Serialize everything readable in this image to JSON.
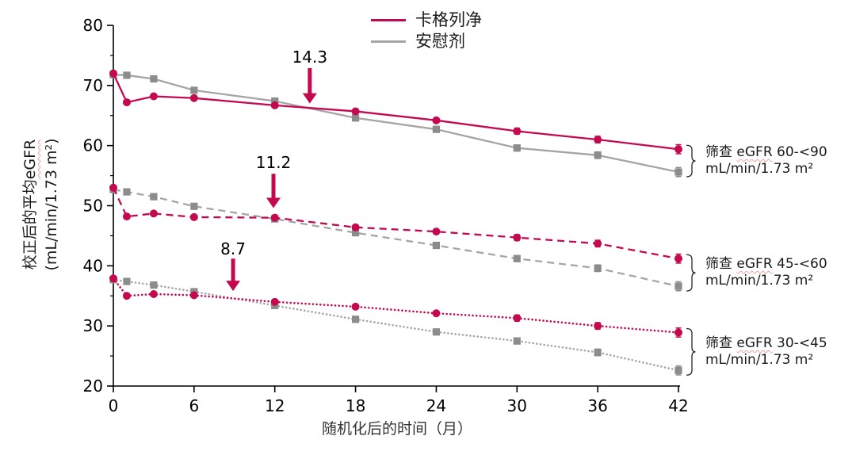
{
  "colors": {
    "canagliflozin": "#C4094E",
    "placebo_line": "#A5A5A5",
    "placebo_marker": "#8C8C8C",
    "axis": "#000000",
    "annotation_arrow": "#C4094E",
    "brace": "#262626"
  },
  "chart_data": {
    "type": "line",
    "x_label": "随机化后的时间（月）",
    "y_label_prefix": "校正后的平均",
    "y_label_egfr": "eGFR",
    "y_label_units": "(mL/min/1.73 m²)",
    "xlim": [
      0,
      42
    ],
    "ylim": [
      20,
      80
    ],
    "x_ticks": [
      0,
      6,
      12,
      18,
      24,
      30,
      36,
      42
    ],
    "y_ticks": [
      20,
      30,
      40,
      50,
      60,
      70,
      80
    ],
    "y_minor_ticks": [
      25,
      35,
      45,
      55,
      65,
      75
    ],
    "grid": false,
    "legend_position": "top-center",
    "legend": [
      {
        "name": "canagliflozin",
        "label": "卡格列净"
      },
      {
        "name": "placebo",
        "label": "安慰剂"
      }
    ],
    "months": [
      0,
      1,
      3,
      6,
      12,
      18,
      24,
      30,
      36,
      42
    ],
    "error_bars": [
      0,
      0,
      0,
      0,
      0,
      0.35,
      0.4,
      0.5,
      0.55,
      0.75
    ],
    "groups": [
      {
        "id": "egfr-60-90",
        "line_style": "solid",
        "label": {
          "prefix": "筛查",
          "egfr": "eGFR",
          "range": "60-<90",
          "units": "mL/min/1.73 m²"
        },
        "series": [
          {
            "name": "卡格列净",
            "values": [
              72.0,
              67.2,
              68.2,
              67.9,
              66.7,
              65.7,
              64.2,
              62.4,
              61.0,
              59.4
            ]
          },
          {
            "name": "安慰剂",
            "values": [
              71.8,
              71.7,
              71.1,
              69.2,
              67.4,
              64.6,
              62.7,
              59.6,
              58.4,
              55.6
            ]
          }
        ]
      },
      {
        "id": "egfr-45-60",
        "line_style": "dashed",
        "label": {
          "prefix": "筛查",
          "egfr": "eGFR",
          "range": "45-<60",
          "units": "mL/min/1.73 m²"
        },
        "series": [
          {
            "name": "卡格列净",
            "values": [
              53.0,
              48.2,
              48.7,
              48.1,
              48.0,
              46.4,
              45.7,
              44.7,
              43.7,
              41.2
            ]
          },
          {
            "name": "安慰剂",
            "values": [
              52.7,
              52.3,
              51.5,
              49.9,
              47.8,
              45.5,
              43.4,
              41.2,
              39.6,
              36.6
            ]
          }
        ]
      },
      {
        "id": "egfr-30-45",
        "line_style": "dotted",
        "label": {
          "prefix": "筛查",
          "egfr": "eGFR",
          "range": "30-<45",
          "units": "mL/min/1.73 m²"
        },
        "series": [
          {
            "name": "卡格列净",
            "values": [
              37.9,
              35.0,
              35.3,
              35.1,
              34.0,
              33.2,
              32.1,
              31.3,
              30.0,
              28.9
            ]
          },
          {
            "name": "安慰剂",
            "values": [
              37.7,
              37.4,
              36.8,
              35.7,
              33.4,
              31.1,
              29.0,
              27.5,
              25.6,
              22.6
            ]
          }
        ]
      }
    ],
    "annotations": [
      {
        "value": "14.3",
        "month": 14.6,
        "text_egfr": 74.7,
        "arrow_from_egfr": 72.9,
        "arrow_to_egfr": 67.0
      },
      {
        "value": "11.2",
        "month": 11.9,
        "text_egfr": 57.2,
        "arrow_from_egfr": 55.3,
        "arrow_to_egfr": 49.6
      },
      {
        "value": "8.7",
        "month": 8.9,
        "text_egfr": 42.8,
        "arrow_from_egfr": 41.2,
        "arrow_to_egfr": 35.8
      }
    ]
  }
}
